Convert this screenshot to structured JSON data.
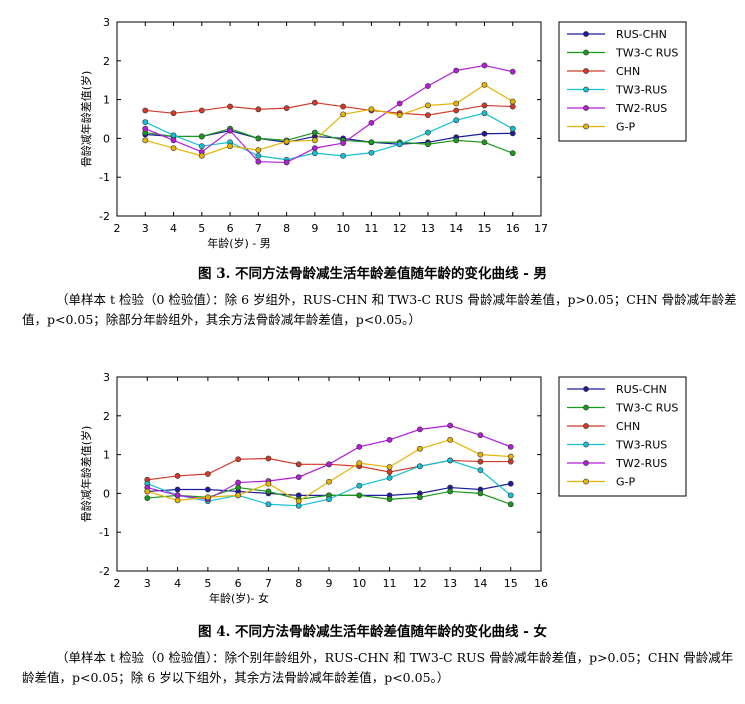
{
  "colors": {
    "RUS-CHN": "#1c1c9c",
    "TW3-C RUS": "#1a9a1a",
    "CHN": "#d23a2a",
    "TW3-RUS": "#14c0d6",
    "TW2-RUS": "#b41ed8",
    "G-P": "#e6b400"
  },
  "figures": [
    {
      "caption": "图 3. 不同方法骨龄减生活年龄差值随年龄的变化曲线 - 男",
      "note": "（单样本 t 检验（0 检验值）：除 6 岁组外，RUS-CHN 和 TW3-C RUS 骨龄减年龄差值，p>0.05；CHN 骨龄减年龄差值，p<0.05；除部分年龄组外，其余方法骨龄减年龄差值，p<0.05。）"
    },
    {
      "caption": "图 4. 不同方法骨龄减生活年龄差值随年龄的变化曲线 - 女",
      "note": "（单样本 t 检验（0 检验值）：除个别年龄组外，RUS-CHN 和 TW3-C RUS 骨龄减年龄差值，p>0.05；CHN 骨龄减年龄差值，p<0.05；除 6 岁以下组外，其余方法骨龄减年龄差值，p<0.05。）"
    }
  ],
  "chart_data": [
    {
      "type": "line",
      "xlabel": "年龄(岁) - 男",
      "ylabel": "骨龄减年龄差值(岁)",
      "xlim": [
        2,
        17
      ],
      "ylim": [
        -2,
        3
      ],
      "xticks": [
        "2",
        "3",
        "4",
        "5",
        "6",
        "7",
        "8",
        "9",
        "10",
        "11",
        "12",
        "13",
        "14",
        "15",
        "16",
        "17"
      ],
      "yticks": [
        "-2",
        "-1",
        "0",
        "1",
        "2",
        "3"
      ],
      "grid": false,
      "legend": "top-right",
      "x": [
        3,
        4,
        5,
        6,
        7,
        8,
        9,
        10,
        11,
        12,
        13,
        14,
        15,
        16
      ],
      "series": [
        {
          "name": "RUS-CHN",
          "values": [
            0.1,
            0.05,
            0.05,
            0.2,
            0.0,
            -0.1,
            0.05,
            0.0,
            -0.1,
            -0.15,
            -0.1,
            0.03,
            0.12,
            0.13
          ]
        },
        {
          "name": "TW3-C RUS",
          "values": [
            0.15,
            0.05,
            0.05,
            0.25,
            0.0,
            -0.05,
            0.15,
            -0.05,
            -0.1,
            -0.1,
            -0.15,
            -0.05,
            -0.1,
            -0.38
          ]
        },
        {
          "name": "CHN",
          "values": [
            0.72,
            0.65,
            0.72,
            0.82,
            0.75,
            0.78,
            0.92,
            0.82,
            0.72,
            0.65,
            0.6,
            0.72,
            0.85,
            0.82
          ]
        },
        {
          "name": "TW3-RUS",
          "values": [
            0.42,
            0.08,
            -0.2,
            -0.1,
            -0.45,
            -0.55,
            -0.38,
            -0.45,
            -0.37,
            -0.15,
            0.15,
            0.47,
            0.65,
            0.25
          ]
        },
        {
          "name": "TW2-RUS",
          "values": [
            0.25,
            -0.05,
            -0.35,
            0.2,
            -0.6,
            -0.62,
            -0.25,
            -0.12,
            0.4,
            0.9,
            1.35,
            1.75,
            1.88,
            1.72
          ]
        },
        {
          "name": "G-P",
          "values": [
            -0.05,
            -0.25,
            -0.45,
            -0.2,
            -0.3,
            -0.08,
            -0.05,
            0.62,
            0.75,
            0.6,
            0.85,
            0.9,
            1.38,
            0.95
          ]
        }
      ]
    },
    {
      "type": "line",
      "xlabel": "年龄(岁)- 女",
      "ylabel": "骨龄减年龄差值(岁)",
      "xlim": [
        2,
        16
      ],
      "ylim": [
        -2,
        3
      ],
      "xticks": [
        "2",
        "3",
        "4",
        "5",
        "6",
        "7",
        "8",
        "9",
        "10",
        "11",
        "12",
        "13",
        "14",
        "15",
        "16"
      ],
      "yticks": [
        "-2",
        "-1",
        "0",
        "1",
        "2",
        "3"
      ],
      "grid": false,
      "legend": "top-right",
      "x": [
        3,
        4,
        5,
        6,
        7,
        8,
        9,
        10,
        11,
        12,
        13,
        14,
        15
      ],
      "series": [
        {
          "name": "RUS-CHN",
          "values": [
            0.05,
            0.1,
            0.1,
            0.05,
            0.0,
            -0.05,
            -0.05,
            -0.05,
            -0.05,
            0.0,
            0.15,
            0.1,
            0.25
          ]
        },
        {
          "name": "TW3-C RUS",
          "values": [
            -0.12,
            -0.05,
            -0.1,
            0.15,
            0.05,
            -0.15,
            -0.05,
            -0.05,
            -0.15,
            -0.1,
            0.05,
            0.0,
            -0.28
          ]
        },
        {
          "name": "CHN",
          "values": [
            0.35,
            0.45,
            0.5,
            0.88,
            0.9,
            0.75,
            0.75,
            0.7,
            0.55,
            0.7,
            0.85,
            0.82,
            0.82
          ]
        },
        {
          "name": "TW3-RUS",
          "values": [
            0.25,
            -0.05,
            -0.2,
            -0.05,
            -0.28,
            -0.32,
            -0.15,
            0.2,
            0.4,
            0.7,
            0.85,
            0.6,
            -0.05
          ]
        },
        {
          "name": "TW2-RUS",
          "values": [
            0.15,
            -0.05,
            -0.15,
            0.28,
            0.32,
            0.42,
            0.75,
            1.2,
            1.38,
            1.65,
            1.75,
            1.5,
            1.2
          ]
        },
        {
          "name": "G-P",
          "values": [
            0.05,
            -0.18,
            -0.1,
            -0.05,
            0.25,
            -0.2,
            0.3,
            0.78,
            0.68,
            1.15,
            1.38,
            1.0,
            0.95
          ]
        }
      ]
    }
  ]
}
